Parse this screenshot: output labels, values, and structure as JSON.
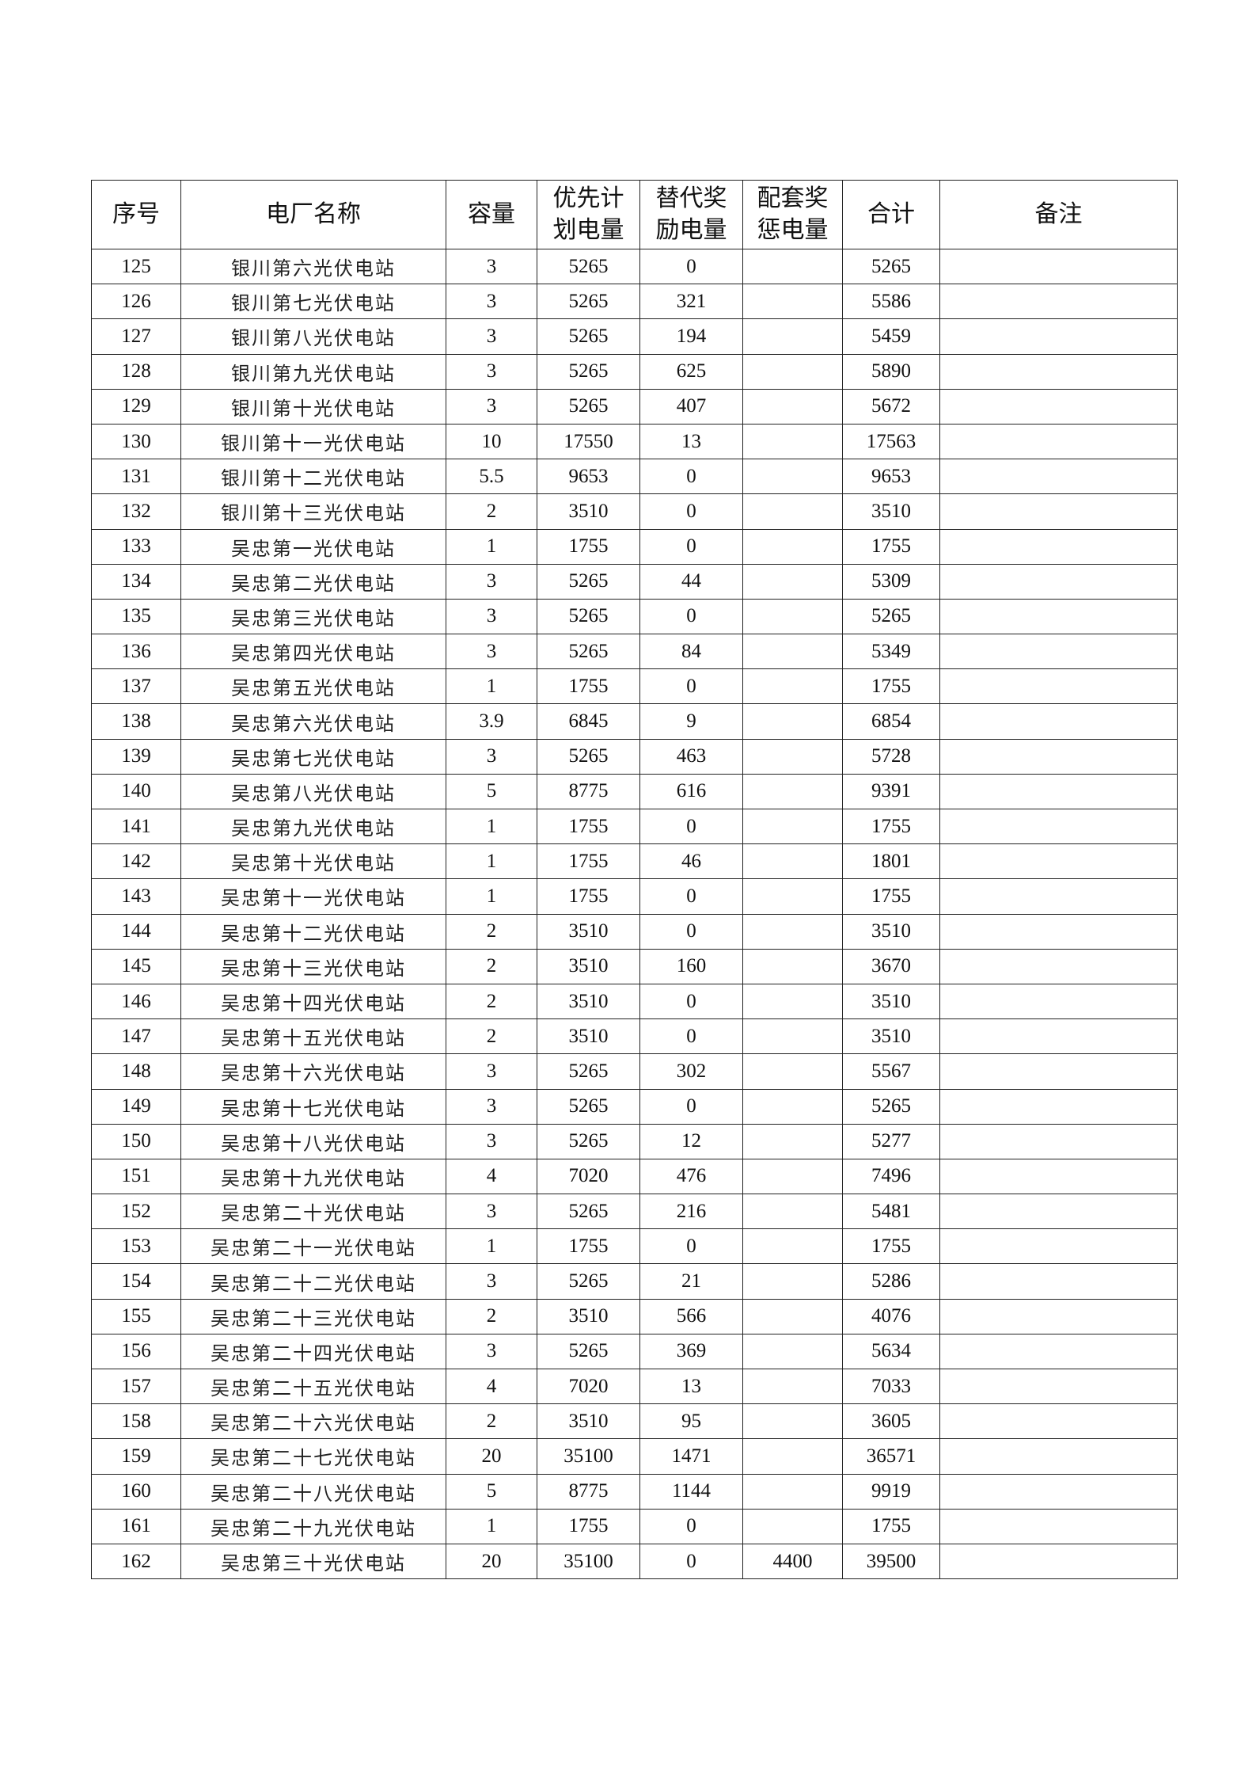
{
  "header": {
    "seq": "序号",
    "name": "电厂名称",
    "capacity": "容量",
    "priority": [
      "优先计",
      "划电量"
    ],
    "replace": [
      "替代奖",
      "励电量"
    ],
    "support": [
      "配套奖",
      "惩电量"
    ],
    "total": "合计",
    "remark": "备注"
  },
  "rows": [
    [
      "125",
      "银川第六光伏电站",
      "3",
      "5265",
      "0",
      "",
      "5265",
      ""
    ],
    [
      "126",
      "银川第七光伏电站",
      "3",
      "5265",
      "321",
      "",
      "5586",
      ""
    ],
    [
      "127",
      "银川第八光伏电站",
      "3",
      "5265",
      "194",
      "",
      "5459",
      ""
    ],
    [
      "128",
      "银川第九光伏电站",
      "3",
      "5265",
      "625",
      "",
      "5890",
      ""
    ],
    [
      "129",
      "银川第十光伏电站",
      "3",
      "5265",
      "407",
      "",
      "5672",
      ""
    ],
    [
      "130",
      "银川第十一光伏电站",
      "10",
      "17550",
      "13",
      "",
      "17563",
      ""
    ],
    [
      "131",
      "银川第十二光伏电站",
      "5.5",
      "9653",
      "0",
      "",
      "9653",
      ""
    ],
    [
      "132",
      "银川第十三光伏电站",
      "2",
      "3510",
      "0",
      "",
      "3510",
      ""
    ],
    [
      "133",
      "吴忠第一光伏电站",
      "1",
      "1755",
      "0",
      "",
      "1755",
      ""
    ],
    [
      "134",
      "吴忠第二光伏电站",
      "3",
      "5265",
      "44",
      "",
      "5309",
      ""
    ],
    [
      "135",
      "吴忠第三光伏电站",
      "3",
      "5265",
      "0",
      "",
      "5265",
      ""
    ],
    [
      "136",
      "吴忠第四光伏电站",
      "3",
      "5265",
      "84",
      "",
      "5349",
      ""
    ],
    [
      "137",
      "吴忠第五光伏电站",
      "1",
      "1755",
      "0",
      "",
      "1755",
      ""
    ],
    [
      "138",
      "吴忠第六光伏电站",
      "3.9",
      "6845",
      "9",
      "",
      "6854",
      ""
    ],
    [
      "139",
      "吴忠第七光伏电站",
      "3",
      "5265",
      "463",
      "",
      "5728",
      ""
    ],
    [
      "140",
      "吴忠第八光伏电站",
      "5",
      "8775",
      "616",
      "",
      "9391",
      ""
    ],
    [
      "141",
      "吴忠第九光伏电站",
      "1",
      "1755",
      "0",
      "",
      "1755",
      ""
    ],
    [
      "142",
      "吴忠第十光伏电站",
      "1",
      "1755",
      "46",
      "",
      "1801",
      ""
    ],
    [
      "143",
      "吴忠第十一光伏电站",
      "1",
      "1755",
      "0",
      "",
      "1755",
      ""
    ],
    [
      "144",
      "吴忠第十二光伏电站",
      "2",
      "3510",
      "0",
      "",
      "3510",
      ""
    ],
    [
      "145",
      "吴忠第十三光伏电站",
      "2",
      "3510",
      "160",
      "",
      "3670",
      ""
    ],
    [
      "146",
      "吴忠第十四光伏电站",
      "2",
      "3510",
      "0",
      "",
      "3510",
      ""
    ],
    [
      "147",
      "吴忠第十五光伏电站",
      "2",
      "3510",
      "0",
      "",
      "3510",
      ""
    ],
    [
      "148",
      "吴忠第十六光伏电站",
      "3",
      "5265",
      "302",
      "",
      "5567",
      ""
    ],
    [
      "149",
      "吴忠第十七光伏电站",
      "3",
      "5265",
      "0",
      "",
      "5265",
      ""
    ],
    [
      "150",
      "吴忠第十八光伏电站",
      "3",
      "5265",
      "12",
      "",
      "5277",
      ""
    ],
    [
      "151",
      "吴忠第十九光伏电站",
      "4",
      "7020",
      "476",
      "",
      "7496",
      ""
    ],
    [
      "152",
      "吴忠第二十光伏电站",
      "3",
      "5265",
      "216",
      "",
      "5481",
      ""
    ],
    [
      "153",
      "吴忠第二十一光伏电站",
      "1",
      "1755",
      "0",
      "",
      "1755",
      ""
    ],
    [
      "154",
      "吴忠第二十二光伏电站",
      "3",
      "5265",
      "21",
      "",
      "5286",
      ""
    ],
    [
      "155",
      "吴忠第二十三光伏电站",
      "2",
      "3510",
      "566",
      "",
      "4076",
      ""
    ],
    [
      "156",
      "吴忠第二十四光伏电站",
      "3",
      "5265",
      "369",
      "",
      "5634",
      ""
    ],
    [
      "157",
      "吴忠第二十五光伏电站",
      "4",
      "7020",
      "13",
      "",
      "7033",
      ""
    ],
    [
      "158",
      "吴忠第二十六光伏电站",
      "2",
      "3510",
      "95",
      "",
      "3605",
      ""
    ],
    [
      "159",
      "吴忠第二十七光伏电站",
      "20",
      "35100",
      "1471",
      "",
      "36571",
      ""
    ],
    [
      "160",
      "吴忠第二十八光伏电站",
      "5",
      "8775",
      "1144",
      "",
      "9919",
      ""
    ],
    [
      "161",
      "吴忠第二十九光伏电站",
      "1",
      "1755",
      "0",
      "",
      "1755",
      ""
    ],
    [
      "162",
      "吴忠第三十光伏电站",
      "20",
      "35100",
      "0",
      "4400",
      "39500",
      ""
    ]
  ]
}
